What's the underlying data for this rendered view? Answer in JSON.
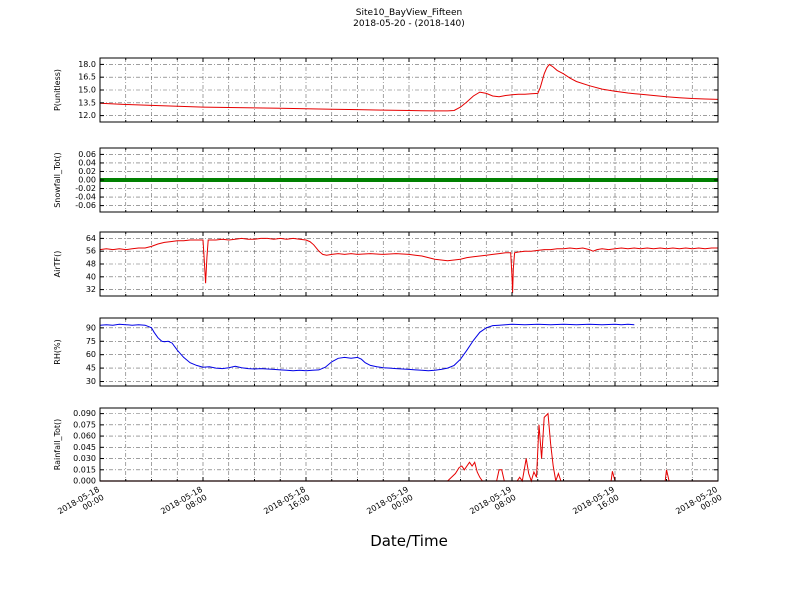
{
  "chart_data": {
    "type": "line",
    "title": "Site10_BayView_Fifteen",
    "subtitle": "2018-05-20 - (2018-140)",
    "xlabel": "Date/Time",
    "x_unit": "hours since 2018-05-18 00:00",
    "xlim": [
      0,
      48
    ],
    "x_minor_grid_step_hours": 2,
    "grid": "dash-dot, both axes",
    "x_ticks": [
      {
        "hour": 0,
        "date": "2018-05-18",
        "time": "00:00"
      },
      {
        "hour": 8,
        "date": "2018-05-18",
        "time": "08:00"
      },
      {
        "hour": 16,
        "date": "2018-05-18",
        "time": "16:00"
      },
      {
        "hour": 24,
        "date": "2018-05-19",
        "time": "00:00"
      },
      {
        "hour": 32,
        "date": "2018-05-19",
        "time": "08:00"
      },
      {
        "hour": 40,
        "date": "2018-05-19",
        "time": "16:00"
      },
      {
        "hour": 48,
        "date": "2018-05-20",
        "time": "00:00"
      }
    ],
    "panels": [
      {
        "id": "p",
        "ylabel": "P(unitless)",
        "color": "#e60000",
        "line_width": 1,
        "ylim": [
          11.25,
          18.75
        ],
        "yticks": [
          12.0,
          13.5,
          15.0,
          16.5,
          18.0
        ],
        "ytick_labels": [
          "12.0",
          "13.5",
          "15.0",
          "16.5",
          "18.0"
        ],
        "series": [
          [
            0,
            13.45
          ],
          [
            2,
            13.3
          ],
          [
            4,
            13.2
          ],
          [
            6,
            13.1
          ],
          [
            8,
            13.0
          ],
          [
            10,
            12.95
          ],
          [
            12,
            12.9
          ],
          [
            14,
            12.85
          ],
          [
            16,
            12.8
          ],
          [
            18,
            12.75
          ],
          [
            20,
            12.7
          ],
          [
            22,
            12.65
          ],
          [
            24,
            12.6
          ],
          [
            25,
            12.58
          ],
          [
            26,
            12.55
          ],
          [
            27,
            12.55
          ],
          [
            27.5,
            12.6
          ],
          [
            28,
            13.0
          ],
          [
            28.5,
            13.6
          ],
          [
            29,
            14.3
          ],
          [
            29.5,
            14.75
          ],
          [
            30,
            14.6
          ],
          [
            30.5,
            14.3
          ],
          [
            31,
            14.2
          ],
          [
            31.5,
            14.35
          ],
          [
            32,
            14.45
          ],
          [
            32.5,
            14.5
          ],
          [
            33,
            14.5
          ],
          [
            33.5,
            14.55
          ],
          [
            34,
            14.6
          ],
          [
            34.2,
            15.3
          ],
          [
            34.5,
            16.9
          ],
          [
            34.7,
            17.6
          ],
          [
            34.9,
            18.0
          ],
          [
            35.2,
            17.7
          ],
          [
            35.5,
            17.3
          ],
          [
            36,
            16.9
          ],
          [
            36.5,
            16.4
          ],
          [
            37,
            16.0
          ],
          [
            38,
            15.5
          ],
          [
            39,
            15.1
          ],
          [
            40,
            14.85
          ],
          [
            41,
            14.65
          ],
          [
            42,
            14.5
          ],
          [
            43,
            14.35
          ],
          [
            44,
            14.2
          ],
          [
            45,
            14.1
          ],
          [
            46,
            14.0
          ],
          [
            47,
            13.95
          ],
          [
            48,
            13.9
          ]
        ]
      },
      {
        "id": "snowfall",
        "ylabel": "Snowfall_Tot()",
        "color": "#008000",
        "line_width": 4,
        "ylim": [
          -0.075,
          0.075
        ],
        "yticks": [
          -0.06,
          -0.04,
          -0.02,
          0.0,
          0.02,
          0.04,
          0.06
        ],
        "ytick_labels": [
          "-0.06",
          "-0.04",
          "-0.02",
          "0.00",
          "0.02",
          "0.04",
          "0.06"
        ],
        "series": [
          [
            0,
            0
          ],
          [
            48,
            0
          ]
        ]
      },
      {
        "id": "airtf",
        "ylabel": "AirTF()",
        "color": "#e60000",
        "line_width": 1,
        "ylim": [
          28,
          68
        ],
        "yticks": [
          32,
          40,
          48,
          56,
          64
        ],
        "ytick_labels": [
          "32",
          "40",
          "48",
          "56",
          "64"
        ],
        "series": [
          [
            0,
            57
          ],
          [
            0.5,
            57.5
          ],
          [
            1,
            57
          ],
          [
            1.5,
            57.5
          ],
          [
            2,
            57
          ],
          [
            2.5,
            57.5
          ],
          [
            3,
            58
          ],
          [
            3.5,
            58
          ],
          [
            4,
            59
          ],
          [
            4.5,
            60.5
          ],
          [
            5,
            61.5
          ],
          [
            5.5,
            62
          ],
          [
            6,
            62.5
          ],
          [
            6.5,
            62.5
          ],
          [
            7,
            63
          ],
          [
            7.5,
            63
          ],
          [
            8,
            63
          ],
          [
            8.1,
            50
          ],
          [
            8.2,
            36
          ],
          [
            8.3,
            52
          ],
          [
            8.4,
            63
          ],
          [
            9,
            63
          ],
          [
            9.5,
            63.5
          ],
          [
            10,
            63
          ],
          [
            10.5,
            63.5
          ],
          [
            11,
            64
          ],
          [
            11.5,
            63.5
          ],
          [
            12,
            63.5
          ],
          [
            12.5,
            64
          ],
          [
            13,
            64
          ],
          [
            13.5,
            63.5
          ],
          [
            14,
            64
          ],
          [
            14.5,
            63.5
          ],
          [
            15,
            64
          ],
          [
            15.5,
            63.5
          ],
          [
            16,
            63
          ],
          [
            16.3,
            62
          ],
          [
            16.6,
            60
          ],
          [
            17,
            56
          ],
          [
            17.3,
            54
          ],
          [
            17.6,
            53.5
          ],
          [
            18,
            54
          ],
          [
            18.5,
            54.5
          ],
          [
            19,
            54
          ],
          [
            19.5,
            54.5
          ],
          [
            20,
            54
          ],
          [
            21,
            54.5
          ],
          [
            22,
            54
          ],
          [
            23,
            54.5
          ],
          [
            24,
            54
          ],
          [
            24.5,
            53.5
          ],
          [
            25,
            53
          ],
          [
            25.5,
            52
          ],
          [
            26,
            51
          ],
          [
            26.5,
            50.5
          ],
          [
            27,
            50
          ],
          [
            27.5,
            50.5
          ],
          [
            28,
            51
          ],
          [
            28.5,
            52
          ],
          [
            29,
            52.5
          ],
          [
            29.5,
            53
          ],
          [
            30,
            53.5
          ],
          [
            30.5,
            54
          ],
          [
            31,
            54.5
          ],
          [
            31.5,
            55
          ],
          [
            31.9,
            55
          ],
          [
            32,
            40
          ],
          [
            32.05,
            30
          ],
          [
            32.1,
            45
          ],
          [
            32.2,
            55
          ],
          [
            32.5,
            55.5
          ],
          [
            33,
            56
          ],
          [
            33.5,
            56
          ],
          [
            34,
            56.5
          ],
          [
            34.5,
            57
          ],
          [
            35,
            57
          ],
          [
            35.5,
            57.5
          ],
          [
            36,
            57.5
          ],
          [
            36.5,
            58
          ],
          [
            37,
            57.5
          ],
          [
            37.5,
            58
          ],
          [
            38,
            57
          ],
          [
            38.3,
            56
          ],
          [
            38.6,
            57
          ],
          [
            39,
            57.5
          ],
          [
            39.5,
            57
          ],
          [
            40,
            57.5
          ],
          [
            40.5,
            58
          ],
          [
            41,
            57.5
          ],
          [
            41.5,
            58
          ],
          [
            42,
            57.5
          ],
          [
            42.5,
            58
          ],
          [
            43,
            57.5
          ],
          [
            43.5,
            58
          ],
          [
            44,
            57.5
          ],
          [
            44.5,
            58
          ],
          [
            45,
            57.5
          ],
          [
            45.5,
            58
          ],
          [
            46,
            57.5
          ],
          [
            46.5,
            58
          ],
          [
            47,
            57.5
          ],
          [
            47.5,
            58
          ],
          [
            48,
            58
          ]
        ]
      },
      {
        "id": "rh",
        "ylabel": "RH(%)",
        "color": "#0000e6",
        "line_width": 1,
        "ylim": [
          25,
          101
        ],
        "yticks": [
          30,
          45,
          60,
          75,
          90
        ],
        "ytick_labels": [
          "30",
          "45",
          "60",
          "75",
          "90"
        ],
        "series": [
          [
            0,
            93
          ],
          [
            0.5,
            93.5
          ],
          [
            1,
            93
          ],
          [
            1.5,
            94
          ],
          [
            2,
            93.5
          ],
          [
            2.5,
            93
          ],
          [
            3,
            93.5
          ],
          [
            3.5,
            93
          ],
          [
            4,
            90
          ],
          [
            4.2,
            85
          ],
          [
            4.5,
            79
          ],
          [
            4.8,
            75
          ],
          [
            5,
            74.5
          ],
          [
            5.3,
            75
          ],
          [
            5.6,
            73
          ],
          [
            6,
            65
          ],
          [
            6.5,
            57
          ],
          [
            7,
            51
          ],
          [
            7.5,
            48
          ],
          [
            8,
            46
          ],
          [
            8.5,
            46.5
          ],
          [
            9,
            45
          ],
          [
            9.5,
            44.5
          ],
          [
            10,
            45.5
          ],
          [
            10.5,
            47
          ],
          [
            11,
            45.5
          ],
          [
            11.5,
            44.5
          ],
          [
            12,
            44
          ],
          [
            12.5,
            44.5
          ],
          [
            13,
            44
          ],
          [
            13.5,
            43.5
          ],
          [
            14,
            43
          ],
          [
            14.5,
            42.5
          ],
          [
            15,
            42
          ],
          [
            15.5,
            42.5
          ],
          [
            16,
            42
          ],
          [
            16.5,
            42.5
          ],
          [
            17,
            43
          ],
          [
            17.5,
            46
          ],
          [
            18,
            52
          ],
          [
            18.5,
            56
          ],
          [
            19,
            57
          ],
          [
            19.5,
            56
          ],
          [
            20,
            57
          ],
          [
            20.3,
            55
          ],
          [
            20.6,
            51
          ],
          [
            21,
            48
          ],
          [
            21.5,
            46.5
          ],
          [
            22,
            45.5
          ],
          [
            22.5,
            45
          ],
          [
            23,
            44.5
          ],
          [
            23.5,
            44
          ],
          [
            24,
            43.5
          ],
          [
            24.5,
            43
          ],
          [
            25,
            42.5
          ],
          [
            25.5,
            42
          ],
          [
            26,
            42.5
          ],
          [
            26.5,
            43.5
          ],
          [
            27,
            45
          ],
          [
            27.5,
            48
          ],
          [
            28,
            55
          ],
          [
            28.5,
            65
          ],
          [
            29,
            76
          ],
          [
            29.5,
            85
          ],
          [
            30,
            90
          ],
          [
            30.5,
            92.5
          ],
          [
            31,
            93
          ],
          [
            31.5,
            93.5
          ],
          [
            32,
            94
          ],
          [
            33,
            93.5
          ],
          [
            34,
            94
          ],
          [
            35,
            93.5
          ],
          [
            36,
            94
          ],
          [
            37,
            93.5
          ],
          [
            38,
            94
          ],
          [
            39,
            93.5
          ],
          [
            40,
            94
          ],
          [
            40.5,
            93.5
          ],
          [
            41,
            94
          ],
          [
            41.5,
            93.5
          ]
        ]
      },
      {
        "id": "rainfall",
        "ylabel": "Rainfall_Tot()",
        "color": "#e60000",
        "line_width": 1,
        "zero_line_color": "#7a0000",
        "ylim": [
          0,
          0.0975
        ],
        "yticks": [
          0.0,
          0.015,
          0.03,
          0.045,
          0.06,
          0.075,
          0.09
        ],
        "ytick_labels": [
          "0.000",
          "0.015",
          "0.030",
          "0.045",
          "0.060",
          "0.075",
          "0.090"
        ],
        "series": [
          [
            0,
            0
          ],
          [
            27,
            0
          ],
          [
            27.3,
            0.005
          ],
          [
            27.6,
            0.01
          ],
          [
            27.9,
            0.018
          ],
          [
            28.1,
            0.02
          ],
          [
            28.3,
            0.015
          ],
          [
            28.5,
            0.02
          ],
          [
            28.7,
            0.025
          ],
          [
            28.9,
            0.02
          ],
          [
            29.1,
            0.025
          ],
          [
            29.3,
            0.012
          ],
          [
            29.5,
            0.005
          ],
          [
            29.7,
            0
          ],
          [
            30.8,
            0
          ],
          [
            31,
            0.015
          ],
          [
            31.2,
            0.015
          ],
          [
            31.4,
            0
          ],
          [
            32.4,
            0
          ],
          [
            32.6,
            0.005
          ],
          [
            32.8,
            0
          ],
          [
            33.1,
            0.03
          ],
          [
            33.3,
            0.01
          ],
          [
            33.5,
            0
          ],
          [
            33.7,
            0.012
          ],
          [
            33.9,
            0.005
          ],
          [
            34.1,
            0.075
          ],
          [
            34.3,
            0.03
          ],
          [
            34.5,
            0.085
          ],
          [
            34.8,
            0.09
          ],
          [
            35,
            0.05
          ],
          [
            35.2,
            0.02
          ],
          [
            35.4,
            0
          ],
          [
            35.6,
            0.01
          ],
          [
            35.8,
            0
          ],
          [
            39.7,
            0
          ],
          [
            39.8,
            0.013
          ],
          [
            40,
            0
          ],
          [
            43.9,
            0
          ],
          [
            44,
            0.015
          ],
          [
            44.2,
            0
          ],
          [
            48,
            0
          ]
        ]
      }
    ]
  }
}
